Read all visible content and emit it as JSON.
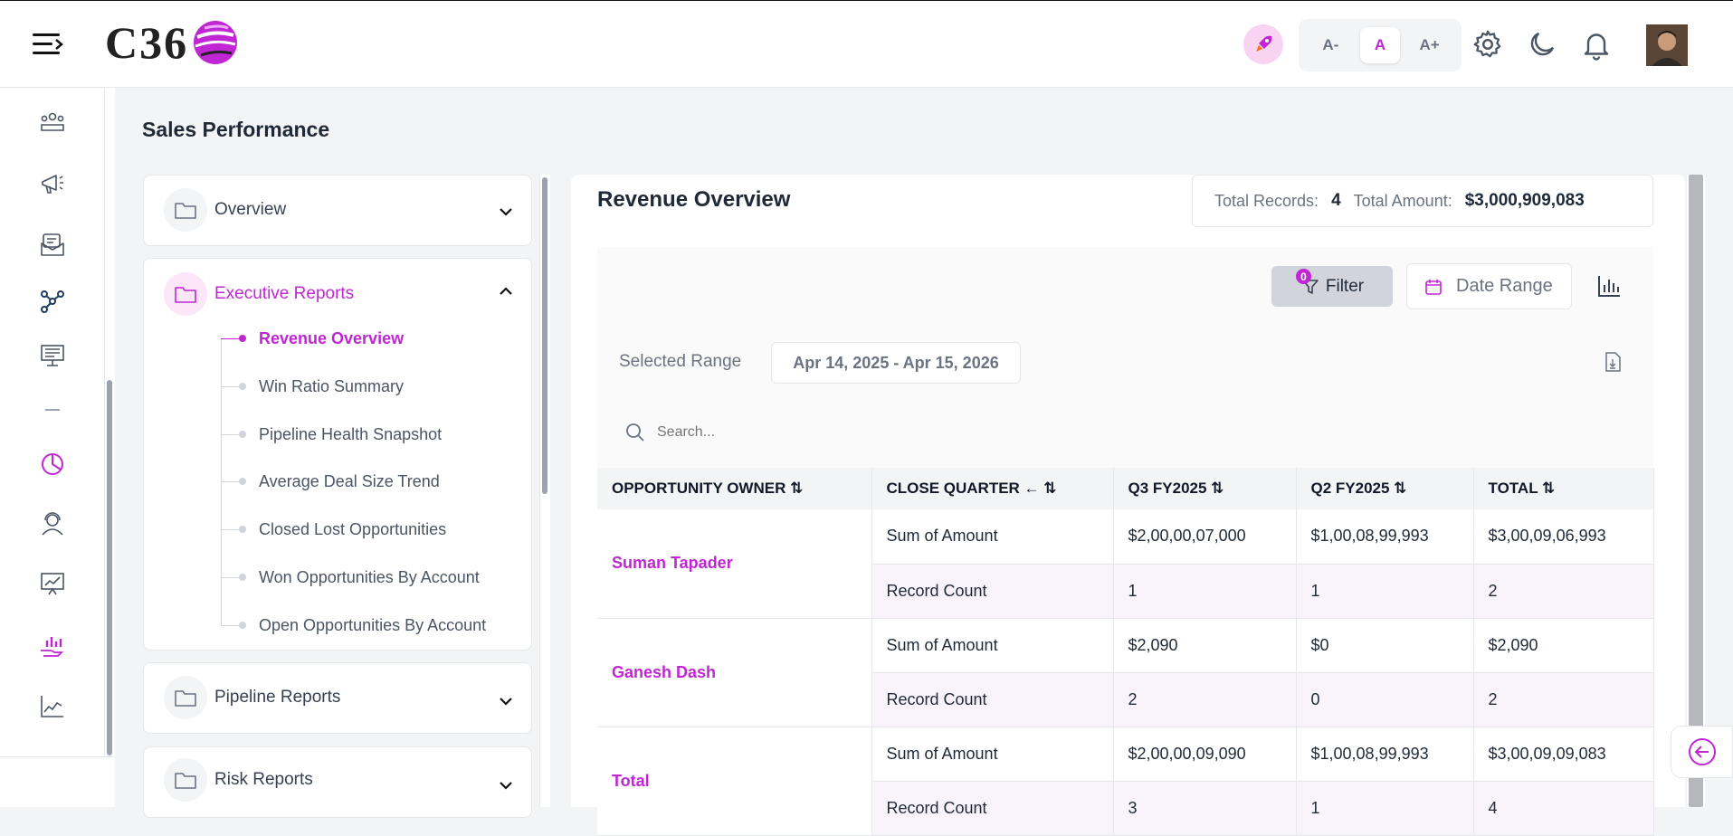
{
  "header": {
    "logo_text": "C36",
    "font_small": "A-",
    "font_normal": "A",
    "font_large": "A+"
  },
  "rail": {
    "icons": [
      "team-icon",
      "megaphone-icon",
      "mail-icon",
      "network-icon",
      "presentation-icon",
      "minus-icon",
      "pie-chart-icon",
      "support-agent-icon",
      "training-chart-icon",
      "hand-chart-icon",
      "line-chart-icon"
    ]
  },
  "page": {
    "title": "Sales Performance"
  },
  "sidebar": {
    "sections": [
      {
        "label": "Overview",
        "expanded": false
      },
      {
        "label": "Executive Reports",
        "expanded": true
      },
      {
        "label": "Pipeline Reports",
        "expanded": false
      },
      {
        "label": "Risk Reports",
        "expanded": false
      }
    ],
    "items": [
      {
        "label": "Revenue Overview",
        "active": true
      },
      {
        "label": "Win Ratio Summary"
      },
      {
        "label": "Pipeline Health Snapshot"
      },
      {
        "label": "Average Deal Size Trend"
      },
      {
        "label": "Closed Lost Opportunities"
      },
      {
        "label": "Won Opportunities By Account"
      },
      {
        "label": "Open Opportunities By Account"
      }
    ]
  },
  "report": {
    "title": "Revenue Overview",
    "total_records_label": "Total Records:",
    "total_records": "4",
    "total_amount_label": "Total Amount:",
    "total_amount": "$3,000,909,083",
    "filter_label": "Filter",
    "filter_count": "0",
    "date_range_label": "Date Range",
    "selected_range_label": "Selected Range",
    "selected_range": "Apr 14, 2025 - Apr 15, 2026",
    "search_placeholder": "Search..."
  },
  "table": {
    "headers": [
      "OPPORTUNITY OWNER ⇅",
      "CLOSE QUARTER ← ⇅",
      "Q3 FY2025 ⇅",
      "Q2 FY2025 ⇅",
      "TOTAL ⇅"
    ],
    "groups": [
      {
        "owner": "Suman Tapader",
        "rows": [
          {
            "measure": "Sum of Amount",
            "q3": "$2,00,00,07,000",
            "q2": "$1,00,08,99,993",
            "total": "$3,00,09,06,993"
          },
          {
            "measure": "Record Count",
            "q3": "1",
            "q2": "1",
            "total": "2"
          }
        ]
      },
      {
        "owner": "Ganesh Dash",
        "rows": [
          {
            "measure": "Sum of Amount",
            "q3": "$2,090",
            "q2": "$0",
            "total": "$2,090"
          },
          {
            "measure": "Record Count",
            "q3": "2",
            "q2": "0",
            "total": "2"
          }
        ]
      },
      {
        "owner": "Total",
        "rows": [
          {
            "measure": "Sum of Amount",
            "q3": "$2,00,00,09,090",
            "q2": "$1,00,08,99,993",
            "total": "$3,00,09,09,083"
          },
          {
            "measure": "Record Count",
            "q3": "3",
            "q2": "1",
            "total": "4"
          }
        ]
      }
    ]
  },
  "colors": {
    "accent": "#c026d3",
    "accent_light": "#fce7f9"
  }
}
